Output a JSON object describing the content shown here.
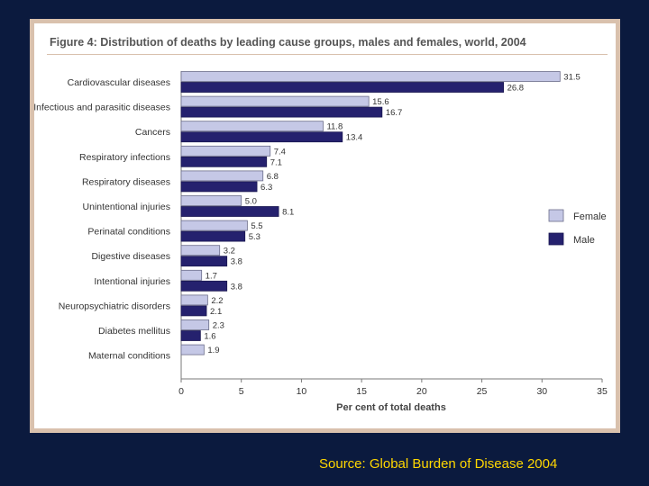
{
  "slide": {
    "source": "Source: Global Burden of Disease 2004"
  },
  "colors": {
    "background": "#0b1a3e",
    "female": "#c5c8e6",
    "male": "#25216e",
    "source_text": "#ffd700"
  },
  "chart_data": {
    "type": "bar",
    "orientation": "horizontal",
    "title": "Figure 4: Distribution of deaths by leading cause groups, males and females, world, 2004",
    "xlabel": "Per cent of total deaths",
    "ylabel": "",
    "xlim": [
      0,
      35
    ],
    "xticks": [
      0,
      5,
      10,
      15,
      20,
      25,
      30,
      35
    ],
    "grid": false,
    "legend_position": "right",
    "categories": [
      "Cardiovascular diseases",
      "Infectious and parasitic diseases",
      "Cancers",
      "Respiratory infections",
      "Respiratory diseases",
      "Unintentional injuries",
      "Perinatal conditions",
      "Digestive diseases",
      "Intentional injuries",
      "Neuropsychiatric disorders",
      "Diabetes mellitus",
      "Maternal conditions"
    ],
    "series": [
      {
        "name": "Female",
        "values": [
          31.5,
          15.6,
          11.8,
          7.4,
          6.8,
          5.0,
          5.5,
          3.2,
          1.7,
          2.2,
          2.3,
          1.9
        ],
        "labels": [
          "31.5",
          "15.6",
          "11.8",
          "7.4",
          "6.8",
          "5.0",
          "5.5",
          "3.2",
          "1.7",
          "2.2",
          "2.3",
          "1.9"
        ]
      },
      {
        "name": "Male",
        "values": [
          26.8,
          16.7,
          13.4,
          7.1,
          6.3,
          8.1,
          5.3,
          3.8,
          3.8,
          2.1,
          1.6,
          null
        ],
        "labels": [
          "26.8",
          "16.7",
          "13.4",
          "7.1",
          "6.3",
          "8.1",
          "5.3",
          "3.8",
          "3.8",
          "2.1",
          "1.6",
          ""
        ]
      }
    ]
  }
}
